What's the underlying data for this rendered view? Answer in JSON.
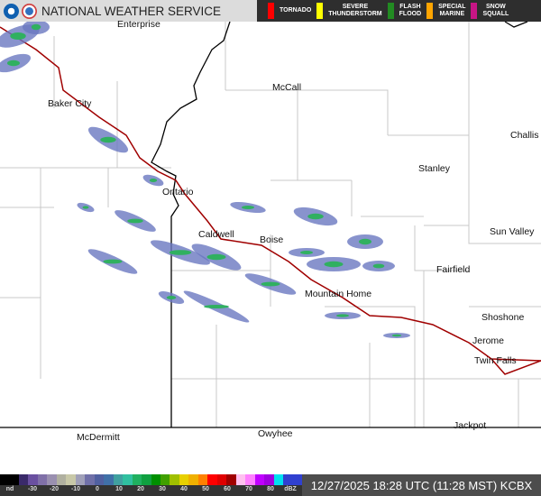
{
  "header": {
    "title": "NATIONAL WEATHER SERVICE",
    "logos": [
      "noaa-logo",
      "nws-logo"
    ]
  },
  "warnings": [
    {
      "label": "TORNADO",
      "color": "#ff0000"
    },
    {
      "label": "SEVERE\nTHUNDERSTORM",
      "color": "#ffff00"
    },
    {
      "label": "FLASH\nFLOOD",
      "color": "#228b22"
    },
    {
      "label": "SPECIAL\nMARINE",
      "color": "#ffa500"
    },
    {
      "label": "SNOW\nSQUALL",
      "color": "#c71585"
    }
  ],
  "cities": [
    "Enterprise",
    "Baker City",
    "McCall",
    "Challis",
    "Stanley",
    "Ontario",
    "Caldwell",
    "Boise",
    "Sun Valley",
    "Fairfield",
    "Mountain Home",
    "Shoshone",
    "Jerome",
    "Twin Falls",
    "Jackpot",
    "McDermitt",
    "Owyhee"
  ],
  "scale": {
    "labels": [
      "nd",
      "-30",
      "-20",
      "-10",
      "0",
      "10",
      "20",
      "30",
      "40",
      "50",
      "60",
      "70",
      "80",
      "dBZ"
    ],
    "colors": [
      "#000",
      "#000",
      "#3a2a6a",
      "#6a50a0",
      "#8070a8",
      "#9a90b0",
      "#b0b0a0",
      "#c8c8a8",
      "#a0a0b8",
      "#7070a8",
      "#5060a0",
      "#4070a8",
      "#40a0a0",
      "#30c0a0",
      "#20b060",
      "#10a040",
      "#009000",
      "#40a000",
      "#a0c000",
      "#e8d000",
      "#f0b000",
      "#ff8000",
      "#ff0000",
      "#e00000",
      "#a00000",
      "#ffc0f0",
      "#ff80ff",
      "#c000ff",
      "#a000e0",
      "#00e0f0",
      "#3040d0",
      "#3040d0"
    ]
  },
  "timestamp": "12/27/2025 18:28 UTC (11:28 MST) KCBX",
  "colors": {
    "interstate": "#a00000",
    "state_border": "#000000",
    "county_border": "#c8c8c8"
  }
}
